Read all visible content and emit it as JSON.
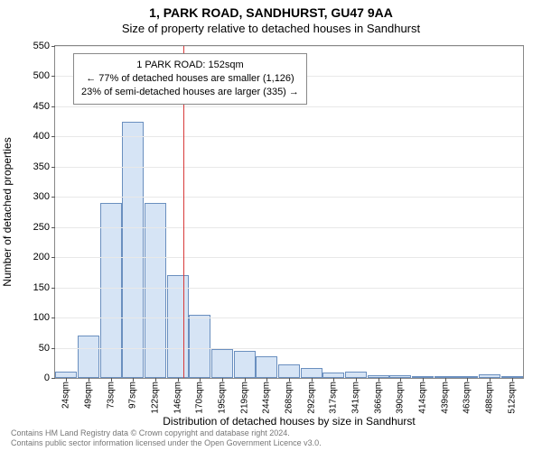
{
  "title": "1, PARK ROAD, SANDHURST, GU47 9AA",
  "subtitle": "Size of property relative to detached houses in Sandhurst",
  "chart": {
    "type": "histogram",
    "xlabel": "Distribution of detached houses by size in Sandhurst",
    "ylabel": "Number of detached properties",
    "background_color": "#ffffff",
    "bar_fill": "#d6e4f5",
    "bar_border": "#6a8fbf",
    "grid_color": "#e8e8e8",
    "axis_color": "#888888",
    "tick_fontsize": 11,
    "label_fontsize": 12,
    "ylim": [
      0,
      550
    ],
    "ytick_step": 50,
    "x_categories": [
      "24sqm",
      "49sqm",
      "73sqm",
      "97sqm",
      "122sqm",
      "146sqm",
      "170sqm",
      "195sqm",
      "219sqm",
      "244sqm",
      "268sqm",
      "292sqm",
      "317sqm",
      "341sqm",
      "366sqm",
      "390sqm",
      "414sqm",
      "439sqm",
      "463sqm",
      "488sqm",
      "512sqm"
    ],
    "values": [
      10,
      70,
      290,
      425,
      290,
      170,
      105,
      48,
      45,
      36,
      22,
      16,
      9,
      10,
      4,
      5,
      0,
      2,
      0,
      6,
      3
    ],
    "marker": {
      "x_position_sqm": 152,
      "color": "#d83a3a",
      "annotation_lines": [
        "1 PARK ROAD: 152sqm",
        "← 77% of detached houses are smaller (1,126)",
        "23% of semi-detached houses are larger (335) →"
      ]
    }
  },
  "footer": {
    "line1": "Contains HM Land Registry data © Crown copyright and database right 2024.",
    "line2": "Contains public sector information licensed under the Open Government Licence v3.0."
  }
}
